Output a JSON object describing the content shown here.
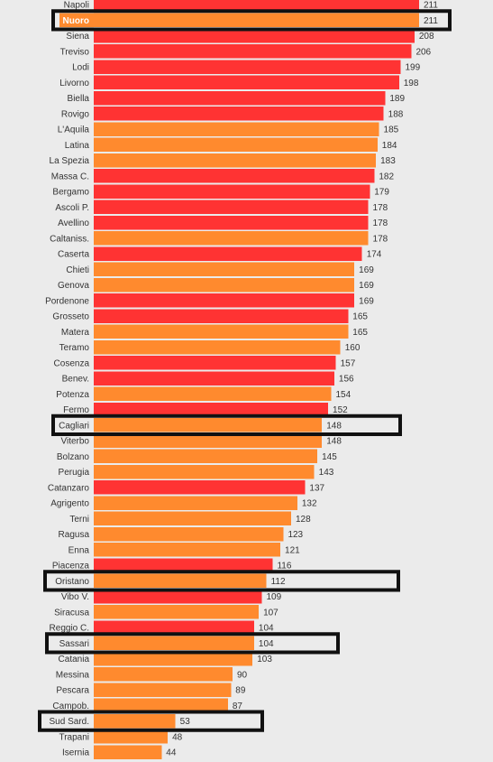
{
  "chart_data": {
    "type": "bar",
    "orientation": "horizontal",
    "colors": {
      "red": "#ff3333",
      "orange": "#ff8a2e",
      "background": "#ebebeb",
      "highlight": "#111111"
    },
    "categories": [
      "Napoli",
      "Nuoro",
      "Siena",
      "Treviso",
      "Lodi",
      "Livorno",
      "Biella",
      "Rovigo",
      "L'Aquila",
      "Latina",
      "La Spezia",
      "Massa C.",
      "Bergamo",
      "Ascoli P.",
      "Avellino",
      "Caltaniss.",
      "Caserta",
      "Chieti",
      "Genova",
      "Pordenone",
      "Grosseto",
      "Matera",
      "Teramo",
      "Cosenza",
      "Benev.",
      "Potenza",
      "Fermo",
      "Cagliari",
      "Viterbo",
      "Bolzano",
      "Perugia",
      "Catanzaro",
      "Agrigento",
      "Terni",
      "Ragusa",
      "Enna",
      "Piacenza",
      "Oristano",
      "Vibo V.",
      "Siracusa",
      "Reggio C.",
      "Sassari",
      "Catania",
      "Messina",
      "Pescara",
      "Campob.",
      "Sud Sard.",
      "Trapani",
      "Isernia"
    ],
    "values": [
      211,
      211,
      208,
      206,
      199,
      198,
      189,
      188,
      185,
      184,
      183,
      182,
      179,
      178,
      178,
      178,
      174,
      169,
      169,
      169,
      165,
      165,
      160,
      157,
      156,
      154,
      152,
      148,
      148,
      145,
      143,
      137,
      132,
      128,
      123,
      121,
      116,
      112,
      109,
      107,
      104,
      104,
      103,
      90,
      89,
      87,
      53,
      48,
      44
    ],
    "bar_colors": [
      "red",
      "orange",
      "red",
      "red",
      "red",
      "red",
      "red",
      "red",
      "orange",
      "orange",
      "orange",
      "red",
      "red",
      "red",
      "red",
      "orange",
      "red",
      "orange",
      "orange",
      "red",
      "red",
      "orange",
      "orange",
      "red",
      "red",
      "orange",
      "red",
      "orange",
      "orange",
      "orange",
      "orange",
      "red",
      "orange",
      "orange",
      "orange",
      "orange",
      "red",
      "orange",
      "red",
      "orange",
      "red",
      "orange",
      "orange",
      "orange",
      "orange",
      "orange",
      "orange",
      "orange",
      "orange"
    ],
    "highlighted": [
      "Nuoro",
      "Cagliari",
      "Oristano",
      "Sassari",
      "Sud Sard."
    ],
    "xlim": [
      0,
      211
    ]
  }
}
